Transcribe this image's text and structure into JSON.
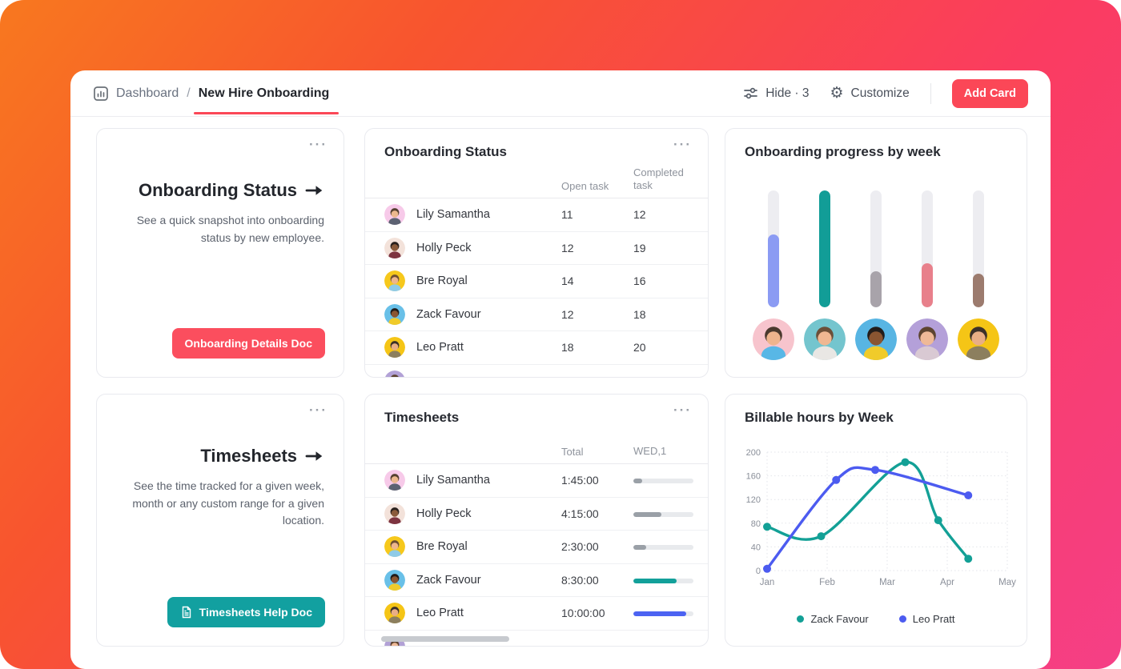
{
  "ui": {
    "card_menu_glyph": "···"
  },
  "header": {
    "breadcrumb": {
      "root": "Dashboard",
      "separator": "/",
      "current": "New Hire Onboarding"
    },
    "hide_label": "Hide · 3",
    "customize_label": "Customize",
    "add_card_label": "Add Card",
    "accent_color": "#fb4757"
  },
  "promo_cards": [
    {
      "title": "Onboarding Status",
      "description": "See a quick snapshot into onboarding status by new employee.",
      "button_label": "Onboarding Details Doc",
      "button_color": "#fb4e5e"
    },
    {
      "title": "Timesheets",
      "description": "See the time tracked for a given week, month or any custom range for a given location.",
      "button_label": "Timesheets Help Doc",
      "button_color": "#12a0a0"
    }
  ],
  "onboarding_table": {
    "title": "Onboarding Status",
    "columns": [
      "Open task",
      "Completed task"
    ],
    "rows": [
      {
        "name": "Lily Samantha",
        "open": "11",
        "completed": "12",
        "avatar": {
          "bg": "#f7cae9",
          "skin": "#ecb88e",
          "hair": "#54402f",
          "shirt": "#5c6272"
        }
      },
      {
        "name": "Holly Peck",
        "open": "12",
        "completed": "19",
        "avatar": {
          "bg": "#f3e2da",
          "skin": "#8a5a3a",
          "hair": "#2a211d",
          "shirt": "#7d3440"
        }
      },
      {
        "name": "Bre Royal",
        "open": "14",
        "completed": "16",
        "avatar": {
          "bg": "#f6c81c",
          "skin": "#eeb68d",
          "hair": "#6e4f33",
          "shirt": "#8fcbe8"
        }
      },
      {
        "name": "Zack Favour",
        "open": "12",
        "completed": "18",
        "avatar": {
          "bg": "#69c0e8",
          "skin": "#8a5531",
          "hair": "#201b19",
          "shirt": "#f0cb2a"
        }
      },
      {
        "name": "Leo Pratt",
        "open": "18",
        "completed": "20",
        "avatar": {
          "bg": "#f5c516",
          "skin": "#e9ae85",
          "hair": "#3c3129",
          "shirt": "#8c7f5e"
        }
      }
    ],
    "partial_row_avatar": {
      "bg": "#b2a1d6",
      "skin": "#eeb997",
      "hair": "#5d4430",
      "shirt": "#cfcfd6"
    }
  },
  "timesheets_table": {
    "title": "Timesheets",
    "columns": [
      "Total",
      "WED,1"
    ],
    "rows": [
      {
        "name": "Lily Samantha",
        "total": "1:45:00",
        "bar_pct": 15,
        "bar_color": "#9aa0a7",
        "avatar": {
          "bg": "#f7cae9",
          "skin": "#ecb88e",
          "hair": "#54402f",
          "shirt": "#5c6272"
        }
      },
      {
        "name": "Holly Peck",
        "total": "4:15:00",
        "bar_pct": 46,
        "bar_color": "#9aa0a7",
        "avatar": {
          "bg": "#f3e2da",
          "skin": "#8a5a3a",
          "hair": "#2a211d",
          "shirt": "#7d3440"
        }
      },
      {
        "name": "Bre Royal",
        "total": "2:30:00",
        "bar_pct": 21,
        "bar_color": "#9aa0a7",
        "avatar": {
          "bg": "#f6c81c",
          "skin": "#eeb68d",
          "hair": "#6e4f33",
          "shirt": "#8fcbe8"
        }
      },
      {
        "name": "Zack Favour",
        "total": "8:30:00",
        "bar_pct": 72,
        "bar_color": "#13a09a",
        "avatar": {
          "bg": "#69c0e8",
          "skin": "#8a5531",
          "hair": "#201b19",
          "shirt": "#f0cb2a"
        }
      },
      {
        "name": "Leo Pratt",
        "total": "10:00:00",
        "bar_pct": 88,
        "bar_color": "#4c63f2",
        "avatar": {
          "bg": "#f5c516",
          "skin": "#e9ae85",
          "hair": "#3c3129",
          "shirt": "#8c7f5e"
        }
      }
    ],
    "partial_row_avatar": {
      "bg": "#b2a1d6",
      "skin": "#eeb997",
      "hair": "#5d4430",
      "shirt": "#cfcfd6"
    }
  },
  "progress_card": {
    "title": "Onboarding progress by week",
    "track_color": "#ededf1",
    "bars": [
      {
        "pct": 62,
        "color": "#8b9bf3",
        "avatar": {
          "bg": "#f7c4cd",
          "skin": "#eeb48d",
          "hair": "#4a392e",
          "shirt": "#58b7e6"
        }
      },
      {
        "pct": 100,
        "color": "#129d97",
        "avatar": {
          "bg": "#74c5ce",
          "skin": "#efb792",
          "hair": "#6b4f38",
          "shirt": "#e9e7e4"
        }
      },
      {
        "pct": 31,
        "color": "#a8a3aa",
        "avatar": {
          "bg": "#58b5e3",
          "skin": "#8a5531",
          "hair": "#221d1b",
          "shirt": "#f0cb2a"
        }
      },
      {
        "pct": 38,
        "color": "#e8808b",
        "avatar": {
          "bg": "#b4a0d9",
          "skin": "#efb997",
          "hair": "#5d4430",
          "shirt": "#d9c9d3"
        }
      },
      {
        "pct": 29,
        "color": "#9c7b6e",
        "avatar": {
          "bg": "#f5c516",
          "skin": "#e9ae85",
          "hair": "#3c3129",
          "shirt": "#8c7f5e"
        }
      }
    ]
  },
  "chart_card": {
    "title": "Billable hours by Week"
  },
  "chart_data": {
    "type": "line",
    "title": "Billable hours by Week",
    "x_ticks": [
      "Jan",
      "Feb",
      "Mar",
      "Apr",
      "May"
    ],
    "y_ticks": [
      0,
      40,
      80,
      120,
      160,
      200
    ],
    "xlim": [
      0,
      4
    ],
    "ylim": [
      0,
      200
    ],
    "grid": "dotted",
    "legend_position": "bottom",
    "series": [
      {
        "name": "Zack Favour",
        "color": "#13a096",
        "x": [
          0,
          0.9,
          2.3,
          2.85,
          3.35
        ],
        "values": [
          74,
          58,
          183,
          85,
          20
        ]
      },
      {
        "name": "Leo Pratt",
        "color": "#4c5bf0",
        "x": [
          0,
          1.15,
          1.8,
          3.35
        ],
        "values": [
          3,
          153,
          170,
          127
        ]
      }
    ]
  }
}
